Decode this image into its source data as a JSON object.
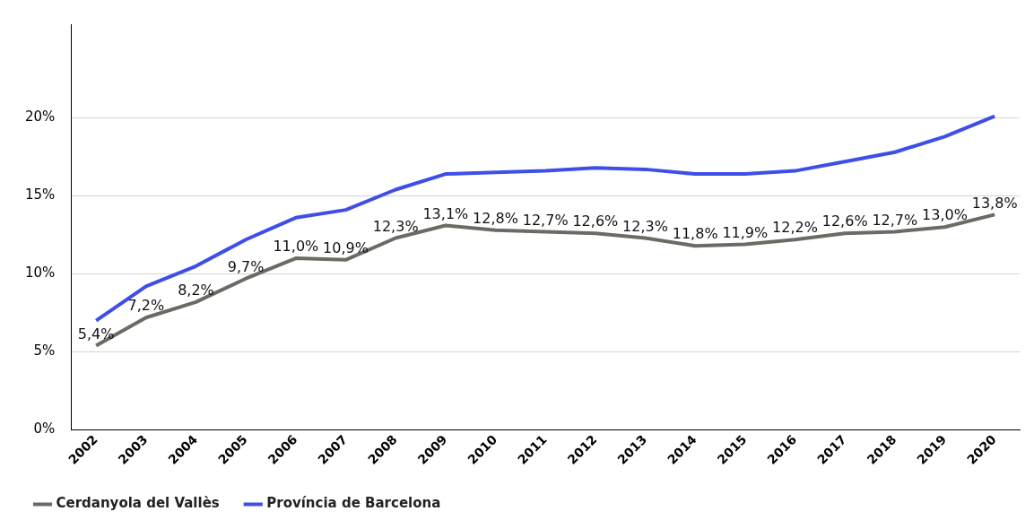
{
  "chart_data": {
    "type": "line",
    "categories": [
      "2002",
      "2003",
      "2004",
      "2005",
      "2006",
      "2007",
      "2008",
      "2009",
      "2010",
      "2011",
      "2012",
      "2013",
      "2014",
      "2015",
      "2016",
      "2017",
      "2018",
      "2019",
      "2020"
    ],
    "series": [
      {
        "name": "Cerdanyola del Vallès",
        "color": "#6b6b65",
        "values": [
          5.4,
          7.2,
          8.2,
          9.7,
          11.0,
          10.9,
          12.3,
          13.1,
          12.8,
          12.7,
          12.6,
          12.3,
          11.8,
          11.9,
          12.2,
          12.6,
          12.7,
          13.0,
          13.8
        ],
        "value_labels": [
          "5,4%",
          "7,2%",
          "8,2%",
          "9,7%",
          "11,0%",
          "10,9%",
          "12,3%",
          "13,1%",
          "12,8%",
          "12,7%",
          "12,6%",
          "12,3%",
          "11,8%",
          "11,9%",
          "12,2%",
          "12,6%",
          "12,7%",
          "13,0%",
          "13,8%"
        ]
      },
      {
        "name": "Província de Barcelona",
        "color": "#3d4fe6",
        "values": [
          7.0,
          9.2,
          10.5,
          12.2,
          13.6,
          14.1,
          15.4,
          16.4,
          16.5,
          16.6,
          16.8,
          16.7,
          16.4,
          16.4,
          16.6,
          17.2,
          17.8,
          18.8,
          20.1
        ]
      }
    ],
    "ylim": [
      0,
      26
    ],
    "yticks": [
      {
        "value": 0,
        "label": "0%"
      },
      {
        "value": 5,
        "label": "5%"
      },
      {
        "value": 10,
        "label": "10%"
      },
      {
        "value": 15,
        "label": "15%"
      },
      {
        "value": 20,
        "label": "20%"
      }
    ],
    "grid": "y",
    "legend": "bottom",
    "marker": "none",
    "line_style": "solid"
  }
}
